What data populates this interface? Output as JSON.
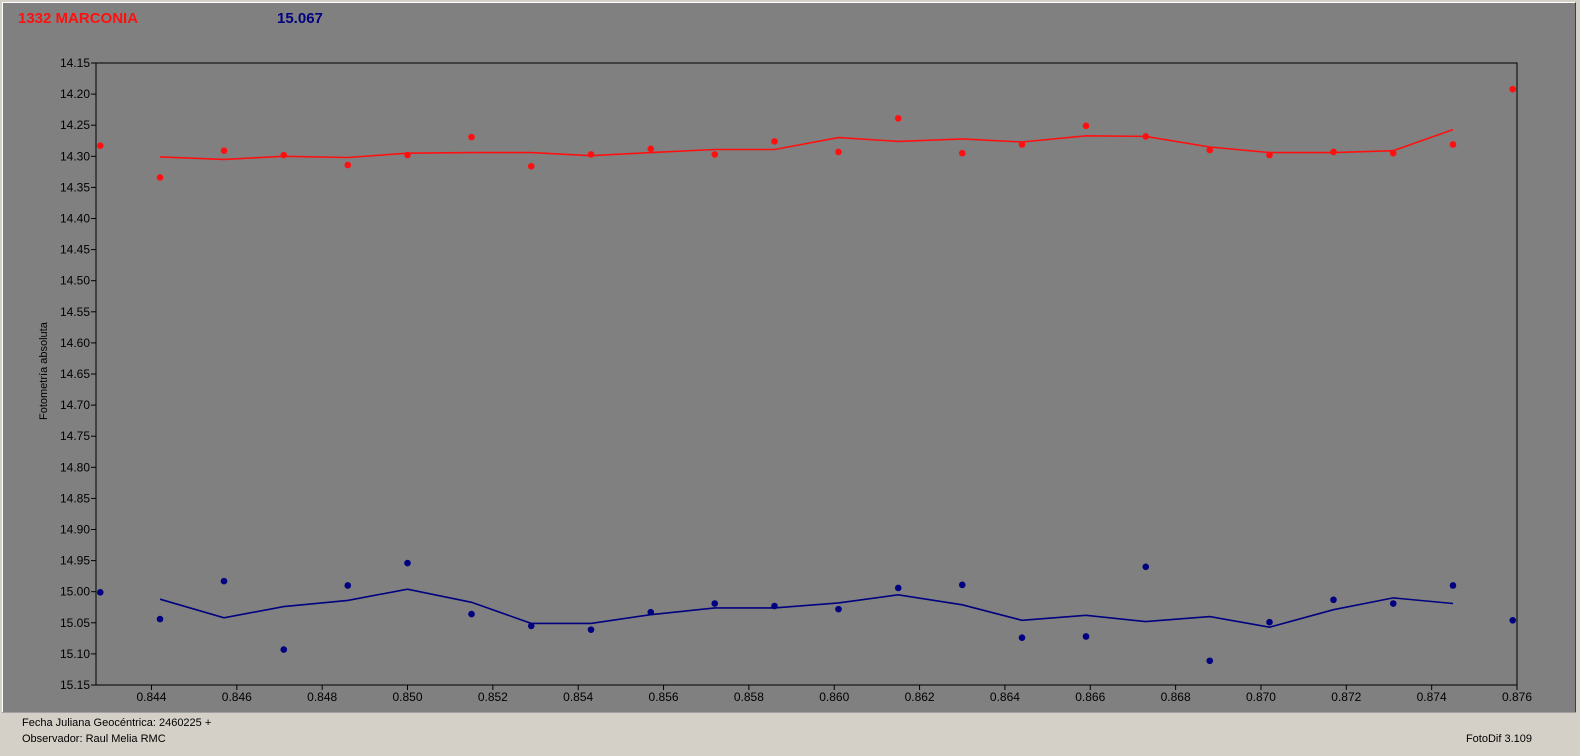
{
  "header": {
    "object_name": "1332 MARCONIA",
    "reference_value": "15.067"
  },
  "footer": {
    "date_label": "Fecha Juliana Geocéntrica: 2460225 +",
    "observer_label": "Observador: Raul Melia RMC",
    "software_label": "FotoDif 3.109"
  },
  "colors": {
    "series_red": "#ff1010",
    "series_blue": "#000080",
    "plot_bg": "#808080"
  },
  "chart_data": {
    "type": "scatter",
    "title": "",
    "xlabel": "",
    "ylabel": "Fotometría absoluta",
    "xlim": [
      0.8427,
      0.876
    ],
    "ylim": [
      14.15,
      15.15
    ],
    "y_inverted": true,
    "grid": false,
    "x_ticks": [
      "0.844",
      "0.846",
      "0.848",
      "0.850",
      "0.852",
      "0.854",
      "0.856",
      "0.858",
      "0.860",
      "0.862",
      "0.864",
      "0.866",
      "0.868",
      "0.870",
      "0.872",
      "0.874",
      "0.876"
    ],
    "y_ticks": [
      "14.15",
      "14.20",
      "14.25",
      "14.30",
      "14.35",
      "14.40",
      "14.45",
      "14.50",
      "14.55",
      "14.60",
      "14.65",
      "14.70",
      "14.75",
      "14.80",
      "14.85",
      "14.90",
      "14.95",
      "15.00",
      "15.05",
      "15.10",
      "15.15"
    ],
    "series": [
      {
        "color": "#ff1010",
        "points": [
          [
            0.8428,
            14.283
          ],
          [
            0.8442,
            14.334
          ],
          [
            0.8457,
            14.291
          ],
          [
            0.8471,
            14.298
          ],
          [
            0.8486,
            14.314
          ],
          [
            0.85,
            14.298
          ],
          [
            0.8515,
            14.269
          ],
          [
            0.8529,
            14.316
          ],
          [
            0.8543,
            14.297
          ],
          [
            0.8557,
            14.288
          ],
          [
            0.8572,
            14.297
          ],
          [
            0.8586,
            14.276
          ],
          [
            0.8601,
            14.293
          ],
          [
            0.8615,
            14.239
          ],
          [
            0.863,
            14.295
          ],
          [
            0.8644,
            14.281
          ],
          [
            0.8659,
            14.251
          ],
          [
            0.8673,
            14.268
          ],
          [
            0.8688,
            14.29
          ],
          [
            0.8702,
            14.298
          ],
          [
            0.8717,
            14.293
          ],
          [
            0.8731,
            14.295
          ],
          [
            0.8745,
            14.281
          ],
          [
            0.8759,
            14.192
          ]
        ],
        "trend": [
          [
            0.8442,
            14.301
          ],
          [
            0.8457,
            14.305
          ],
          [
            0.8471,
            14.3
          ],
          [
            0.8486,
            14.302
          ],
          [
            0.85,
            14.295
          ],
          [
            0.8515,
            14.294
          ],
          [
            0.8529,
            14.294
          ],
          [
            0.8543,
            14.299
          ],
          [
            0.8557,
            14.294
          ],
          [
            0.8572,
            14.289
          ],
          [
            0.8586,
            14.289
          ],
          [
            0.8601,
            14.27
          ],
          [
            0.8615,
            14.276
          ],
          [
            0.863,
            14.272
          ],
          [
            0.8644,
            14.277
          ],
          [
            0.8659,
            14.267
          ],
          [
            0.8673,
            14.268
          ],
          [
            0.8688,
            14.285
          ],
          [
            0.8702,
            14.294
          ],
          [
            0.8717,
            14.294
          ],
          [
            0.8731,
            14.291
          ],
          [
            0.8745,
            14.257
          ]
        ]
      },
      {
        "color": "#000080",
        "points": [
          [
            0.8428,
            15.001
          ],
          [
            0.8442,
            15.044
          ],
          [
            0.8457,
            14.983
          ],
          [
            0.8471,
            15.093
          ],
          [
            0.8486,
            14.99
          ],
          [
            0.85,
            14.954
          ],
          [
            0.8515,
            15.036
          ],
          [
            0.8529,
            15.055
          ],
          [
            0.8543,
            15.061
          ],
          [
            0.8557,
            15.033
          ],
          [
            0.8572,
            15.019
          ],
          [
            0.8586,
            15.023
          ],
          [
            0.8601,
            15.028
          ],
          [
            0.8615,
            14.994
          ],
          [
            0.863,
            14.989
          ],
          [
            0.8644,
            15.074
          ],
          [
            0.8659,
            15.072
          ],
          [
            0.8673,
            14.96
          ],
          [
            0.8688,
            15.111
          ],
          [
            0.8702,
            15.049
          ],
          [
            0.8717,
            15.013
          ],
          [
            0.8731,
            15.019
          ],
          [
            0.8745,
            14.99
          ],
          [
            0.8759,
            15.046
          ]
        ],
        "trend": [
          [
            0.8442,
            15.012
          ],
          [
            0.8457,
            15.042
          ],
          [
            0.8471,
            15.024
          ],
          [
            0.8486,
            15.014
          ],
          [
            0.85,
            14.996
          ],
          [
            0.8515,
            15.017
          ],
          [
            0.8529,
            15.051
          ],
          [
            0.8543,
            15.051
          ],
          [
            0.8557,
            15.037
          ],
          [
            0.8572,
            15.026
          ],
          [
            0.8586,
            15.026
          ],
          [
            0.8601,
            15.018
          ],
          [
            0.8615,
            15.005
          ],
          [
            0.863,
            15.021
          ],
          [
            0.8644,
            15.046
          ],
          [
            0.8659,
            15.038
          ],
          [
            0.8673,
            15.048
          ],
          [
            0.8688,
            15.04
          ],
          [
            0.8702,
            15.057
          ],
          [
            0.8717,
            15.029
          ],
          [
            0.8731,
            15.01
          ],
          [
            0.8745,
            15.019
          ]
        ]
      }
    ]
  }
}
